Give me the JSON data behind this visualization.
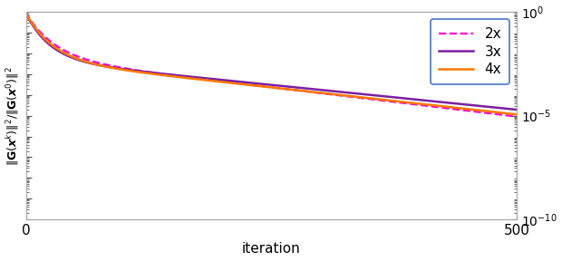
{
  "title": "",
  "xlabel": "iteration",
  "xlim": [
    0,
    500
  ],
  "ylim_log": [
    -10,
    0
  ],
  "n_iter": 501,
  "series": [
    {
      "label": "2x",
      "color": "#FF00CC",
      "linestyle": "dashed",
      "linewidth": 1.6,
      "alpha": 1.0,
      "params": [
        1.0,
        0.18,
        0.013,
        30,
        2e-09
      ]
    },
    {
      "label": "3x",
      "color": "#7B1FA2",
      "linestyle": "solid",
      "linewidth": 1.8,
      "alpha": 1.0,
      "params": [
        1.0,
        0.22,
        0.011,
        25,
        8e-10
      ]
    },
    {
      "label": "4x",
      "color": "#FF7700",
      "linestyle": "solid",
      "linewidth": 1.8,
      "alpha": 1.0,
      "params": [
        1.0,
        0.2,
        0.012,
        28,
        1.5e-09
      ]
    }
  ],
  "legend_loc": "upper right",
  "legend_edgecolor": "#4472C4",
  "legend_fontsize": 11,
  "yticks_right": true,
  "ytick_labels": [
    "10$^{0}$",
    "10$^{-5}$",
    "10$^{-10}$"
  ],
  "ytick_positions": [
    1.0,
    1e-05,
    1e-10
  ],
  "background_color": "#FFFFFF"
}
